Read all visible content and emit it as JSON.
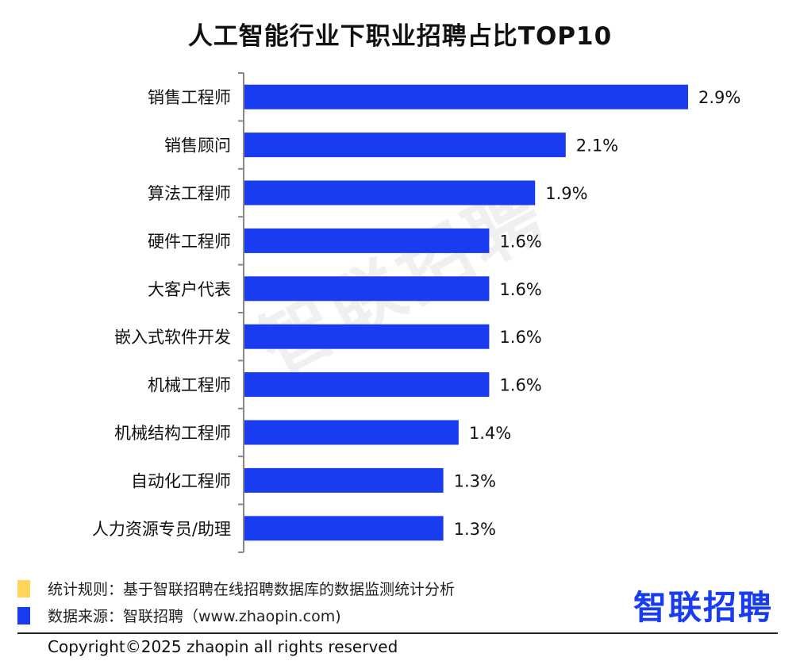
{
  "title": "人工智能行业下职业招聘占比TOP10",
  "watermark": "智联招聘",
  "legend": [
    {
      "label": "统计规则：基于智联招聘在线招聘数据库的数据监测统计分析",
      "color": "#ffd45a"
    },
    {
      "label": "数据来源：智联招聘（www.zhaopin.com)",
      "color": "#1a3cf0"
    }
  ],
  "brand": "智联招聘",
  "copyright": "Copyright©2025 zhaopin all rights reserved",
  "chart_data": {
    "type": "bar",
    "orientation": "horizontal",
    "title": "人工智能行业下职业招聘占比TOP10",
    "categories": [
      "销售工程师",
      "销售顾问",
      "算法工程师",
      "硬件工程师",
      "大客户代表",
      "嵌入式软件开发",
      "机械工程师",
      "机械结构工程师",
      "自动化工程师",
      "人力资源专员/助理"
    ],
    "values": [
      2.9,
      2.1,
      1.9,
      1.6,
      1.6,
      1.6,
      1.6,
      1.4,
      1.3,
      1.3
    ],
    "labels": [
      "2.9%",
      "2.1%",
      "1.9%",
      "1.6%",
      "1.6%",
      "1.6%",
      "1.6%",
      "1.4%",
      "1.3%",
      "1.3%"
    ],
    "bar_color": "#1a3cf0",
    "xlim": [
      0,
      3.0
    ],
    "grid": false,
    "legend": "none"
  }
}
